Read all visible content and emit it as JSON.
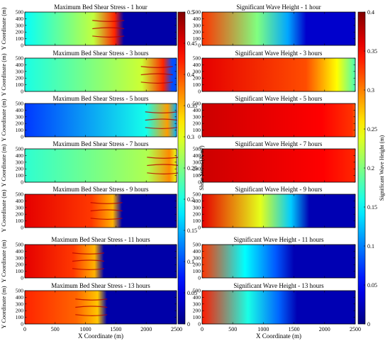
{
  "figure": {
    "left_colorbar": {
      "label": "Shear Stress (N/m²)",
      "range": [
        0,
        0.5
      ],
      "ticks": [
        0,
        0.05,
        0.1,
        0.15,
        0.2,
        0.25,
        0.3,
        0.35,
        0.4,
        0.45,
        0.5
      ]
    },
    "right_colorbar": {
      "label": "Significant Wave Height (m)",
      "range": [
        0,
        0.4
      ],
      "ticks": [
        0,
        0.05,
        0.1,
        0.15,
        0.2,
        0.25,
        0.3,
        0.35,
        0.4
      ]
    },
    "shared_xlabel": "X Coordinate (m)",
    "shared_ylabel": "Y Coordinate (m)"
  },
  "chart_data": [
    {
      "type": "heatmap",
      "column": "left",
      "row": 0,
      "hour": 1,
      "title": "Maximum Bed Shear Stress - 1 hour",
      "xlim": [
        0,
        2500
      ],
      "ylim": [
        0,
        500
      ],
      "xticks": [
        0,
        500,
        1000,
        1500,
        2000,
        2500
      ],
      "yticks": [
        0,
        100,
        200,
        300,
        400,
        500
      ],
      "front_x": 1580,
      "behind_value": 0.19,
      "peak_value": 0.42,
      "ahead_value": 0.02
    },
    {
      "type": "heatmap",
      "column": "left",
      "row": 1,
      "hour": 3,
      "title": "Maximum Bed Shear Stress - 3 hours",
      "xlim": [
        0,
        2500
      ],
      "ylim": [
        0,
        500
      ],
      "xticks": [
        0,
        500,
        1000,
        1500,
        2000,
        2500
      ],
      "yticks": [
        0,
        100,
        200,
        300,
        400,
        500
      ],
      "front_x": 2380,
      "behind_value": 0.2,
      "peak_value": 0.42,
      "ahead_value": 0.1
    },
    {
      "type": "heatmap",
      "column": "left",
      "row": 2,
      "hour": 5,
      "title": "Maximum Bed Shear Stress - 5 hours",
      "xlim": [
        0,
        2500
      ],
      "ylim": [
        0,
        500
      ],
      "xticks": [
        0,
        500,
        1000,
        1500,
        2000,
        2500
      ],
      "yticks": [
        0,
        100,
        200,
        300,
        400,
        500
      ],
      "front_x": 2450,
      "behind_value": 0.09,
      "peak_value": 0.36,
      "ahead_value": 0.15
    },
    {
      "type": "heatmap",
      "column": "left",
      "row": 3,
      "hour": 7,
      "title": "Maximum Bed Shear Stress - 7 hours",
      "xlim": [
        0,
        2500
      ],
      "ylim": [
        0,
        500
      ],
      "xticks": [
        0,
        500,
        1000,
        1500,
        2000,
        2500
      ],
      "yticks": [
        0,
        100,
        200,
        300,
        400,
        500
      ],
      "front_x": 2480,
      "behind_value": 0.21,
      "peak_value": 0.37,
      "ahead_value": 0.3
    },
    {
      "type": "heatmap",
      "column": "left",
      "row": 4,
      "hour": 9,
      "title": "Maximum Bed Shear Stress - 9 hours",
      "xlim": [
        0,
        2500
      ],
      "ylim": [
        0,
        500
      ],
      "xticks": [
        0,
        500,
        1000,
        1500,
        2000,
        2500
      ],
      "yticks": [
        0,
        100,
        200,
        300,
        400,
        500
      ],
      "front_x": 1550,
      "behind_value": 0.45,
      "peak_value": 0.35,
      "ahead_value": 0.02
    },
    {
      "type": "heatmap",
      "column": "left",
      "row": 5,
      "hour": 11,
      "title": "Maximum Bed Shear Stress - 11 hours",
      "xlim": [
        0,
        2500
      ],
      "ylim": [
        0,
        500
      ],
      "xticks": [
        0,
        500,
        1000,
        1500,
        2000,
        2500
      ],
      "yticks": [
        0,
        100,
        200,
        300,
        400,
        500
      ],
      "front_x": 1250,
      "behind_value": 0.45,
      "peak_value": 0.35,
      "ahead_value": 0.02
    },
    {
      "type": "heatmap",
      "column": "left",
      "row": 6,
      "hour": 13,
      "title": "Maximum Bed Shear Stress - 13 hours",
      "xlim": [
        0,
        2500
      ],
      "ylim": [
        0,
        500
      ],
      "xticks": [
        0,
        500,
        1000,
        1500,
        2000,
        2500
      ],
      "yticks": [
        0,
        100,
        200,
        300,
        400,
        500
      ],
      "front_x": 1300,
      "behind_value": 0.42,
      "peak_value": 0.34,
      "ahead_value": 0.02
    },
    {
      "type": "heatmap",
      "column": "right",
      "row": 0,
      "hour": 1,
      "title": "Significant Wave Height - 1 hour",
      "xlim": [
        0,
        2500
      ],
      "ylim": [
        0,
        500
      ],
      "xticks": [
        0,
        500,
        1000,
        1500,
        2000,
        2500
      ],
      "yticks": [
        0,
        100,
        200,
        300,
        400,
        500
      ],
      "start_value": 0.33,
      "mid_value": 0.2,
      "end_value": 0.03,
      "front_x": 1400
    },
    {
      "type": "heatmap",
      "column": "right",
      "row": 1,
      "hour": 3,
      "title": "Significant Wave Height - 3 hours",
      "xlim": [
        0,
        2500
      ],
      "ylim": [
        0,
        500
      ],
      "xticks": [
        0,
        500,
        1000,
        1500,
        2000,
        2500
      ],
      "yticks": [
        0,
        100,
        200,
        300,
        400,
        500
      ],
      "start_value": 0.36,
      "mid_value": 0.32,
      "end_value": 0.18,
      "front_x": 2200
    },
    {
      "type": "heatmap",
      "column": "right",
      "row": 2,
      "hour": 5,
      "title": "Significant Wave Height - 5 hours",
      "xlim": [
        0,
        2500
      ],
      "ylim": [
        0,
        500
      ],
      "xticks": [
        0,
        500,
        1000,
        1500,
        2000,
        2500
      ],
      "yticks": [
        0,
        100,
        200,
        300,
        400,
        500
      ],
      "start_value": 0.37,
      "mid_value": 0.35,
      "end_value": 0.31,
      "front_x": 2450
    },
    {
      "type": "heatmap",
      "column": "right",
      "row": 3,
      "hour": 7,
      "title": "Significant Wave Height - 7 hours",
      "xlim": [
        0,
        2500
      ],
      "ylim": [
        0,
        500
      ],
      "xticks": [
        0,
        500,
        1000,
        1500,
        2000,
        2500
      ],
      "yticks": [
        0,
        100,
        200,
        300,
        400,
        500
      ],
      "start_value": 0.37,
      "mid_value": 0.35,
      "end_value": 0.32,
      "front_x": 2480
    },
    {
      "type": "heatmap",
      "column": "right",
      "row": 4,
      "hour": 9,
      "title": "Significant Wave Height - 9 hours",
      "xlim": [
        0,
        2500
      ],
      "ylim": [
        0,
        500
      ],
      "xticks": [
        0,
        500,
        1000,
        1500,
        2000,
        2500
      ],
      "yticks": [
        0,
        100,
        200,
        300,
        400,
        500
      ],
      "start_value": 0.36,
      "mid_value": 0.24,
      "end_value": 0.02,
      "front_x": 1450
    },
    {
      "type": "heatmap",
      "column": "right",
      "row": 5,
      "hour": 11,
      "title": "Significant Wave Height - 11 hours",
      "xlim": [
        0,
        2500
      ],
      "ylim": [
        0,
        500
      ],
      "xticks": [
        0,
        500,
        1000,
        1500,
        2000,
        2500
      ],
      "yticks": [
        0,
        100,
        200,
        300,
        400,
        500
      ],
      "start_value": 0.33,
      "mid_value": 0.15,
      "end_value": 0.02,
      "front_x": 1200
    },
    {
      "type": "heatmap",
      "column": "right",
      "row": 6,
      "hour": 13,
      "title": "Significant Wave Height - 13 hours",
      "xlim": [
        0,
        2500
      ],
      "ylim": [
        0,
        500
      ],
      "xticks": [
        0,
        500,
        1000,
        1500,
        2000,
        2500
      ],
      "yticks": [
        0,
        100,
        200,
        300,
        400,
        500
      ],
      "start_value": 0.34,
      "mid_value": 0.16,
      "end_value": 0.02,
      "front_x": 1250
    }
  ]
}
